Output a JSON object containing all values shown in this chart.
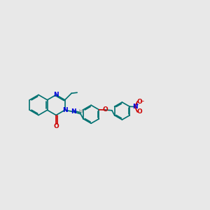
{
  "bg_color": "#e8e8e8",
  "bond_color": "#007070",
  "n_color": "#0000dd",
  "o_color": "#cc0000",
  "h_color": "#707070",
  "lw": 1.2,
  "dbo_inner": 0.055,
  "dbo_outer": 0.07,
  "label_fs": 6.5,
  "small_fs": 5.0,
  "xlim": [
    0,
    12
  ],
  "ylim": [
    2,
    9
  ],
  "r_benz": 0.58,
  "r_quat": 0.58,
  "r2": 0.52,
  "r3": 0.5
}
